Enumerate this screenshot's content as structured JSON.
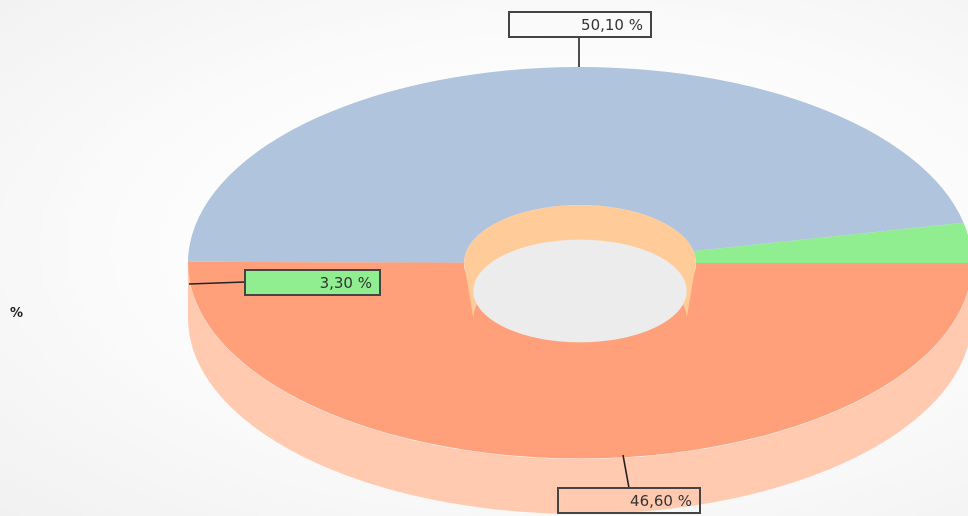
{
  "chart_data": {
    "type": "pie",
    "style": "3d-donut",
    "unit_label": "%",
    "legend": "none",
    "slices": [
      {
        "label": "50,10 %",
        "value": 50.1,
        "color": "#FFA07A",
        "inner_color": "#FFCC99",
        "side_color": "#FFCAB0"
      },
      {
        "label": "46,60 %",
        "value": 46.6,
        "color": "#B0C4DE",
        "inner_color": "#CBD9EA",
        "side_color": "#E0FFFF"
      },
      {
        "label": "3,30 %",
        "value": 3.3,
        "color": "#90EE90",
        "inner_color": "#B8F3B8",
        "side_color": "#A6F0A6"
      }
    ]
  }
}
